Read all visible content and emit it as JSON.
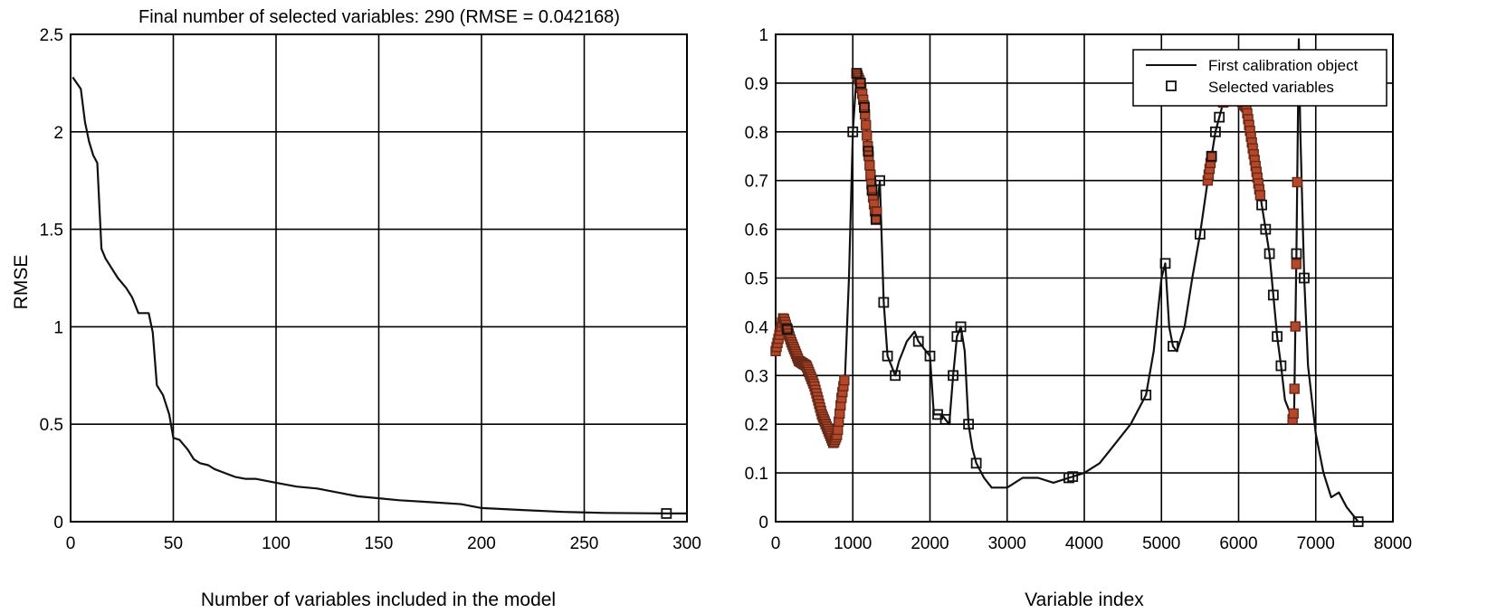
{
  "chart_data": [
    {
      "type": "line",
      "title": "Final number of selected variables: 290  (RMSE = 0.042168)",
      "xlabel": "Number of variables included in the model",
      "ylabel": "RMSE",
      "xlim": [
        0,
        300
      ],
      "ylim": [
        0,
        2.5
      ],
      "xticks": [
        "0",
        "50",
        "100",
        "150",
        "200",
        "250",
        "300"
      ],
      "yticks": [
        "0",
        "0.5",
        "1",
        "1.5",
        "2",
        "2.5"
      ],
      "grid": true,
      "series": [
        {
          "x": [
            1,
            5,
            7,
            9,
            11,
            13,
            15,
            17,
            20,
            23,
            27,
            30,
            33,
            36,
            38,
            40,
            42,
            45,
            48,
            50,
            53,
            57,
            60,
            63,
            67,
            70,
            75,
            80,
            85,
            90,
            100,
            110,
            120,
            130,
            140,
            150,
            160,
            175,
            190,
            200,
            220,
            240,
            260,
            280,
            290,
            300
          ],
          "y": [
            2.28,
            2.22,
            2.05,
            1.95,
            1.88,
            1.84,
            1.4,
            1.35,
            1.3,
            1.25,
            1.2,
            1.15,
            1.07,
            1.07,
            1.07,
            0.97,
            0.7,
            0.65,
            0.55,
            0.43,
            0.42,
            0.37,
            0.32,
            0.3,
            0.29,
            0.27,
            0.25,
            0.23,
            0.22,
            0.22,
            0.2,
            0.18,
            0.17,
            0.15,
            0.13,
            0.12,
            0.11,
            0.1,
            0.09,
            0.07,
            0.06,
            0.05,
            0.045,
            0.043,
            0.042,
            0.042
          ]
        }
      ],
      "highlight_point": {
        "x": 290,
        "y": 0.042
      }
    },
    {
      "type": "line",
      "xlabel": "Variable index",
      "xlim": [
        0,
        8000
      ],
      "ylim": [
        0,
        1
      ],
      "xticks": [
        "0",
        "1000",
        "2000",
        "3000",
        "4000",
        "5000",
        "6000",
        "7000",
        "8000"
      ],
      "yticks": [
        "0",
        "0.1",
        "0.2",
        "0.3",
        "0.4",
        "0.5",
        "0.6",
        "0.7",
        "0.8",
        "0.9",
        "1"
      ],
      "grid": true,
      "legend": {
        "position": "top-right",
        "entries": [
          "First calibration object",
          "Selected variables"
        ]
      },
      "series": [
        {
          "name": "First calibration object",
          "x": [
            0,
            100,
            200,
            300,
            400,
            500,
            600,
            700,
            750,
            800,
            850,
            900,
            950,
            1000,
            1050,
            1100,
            1150,
            1200,
            1250,
            1300,
            1350,
            1400,
            1450,
            1500,
            1550,
            1600,
            1650,
            1700,
            1800,
            1850,
            1900,
            1950,
            2000,
            2050,
            2100,
            2150,
            2200,
            2250,
            2300,
            2350,
            2400,
            2450,
            2500,
            2550,
            2600,
            2700,
            2800,
            3000,
            3200,
            3400,
            3600,
            3800,
            4000,
            4200,
            4400,
            4600,
            4800,
            4900,
            5000,
            5050,
            5100,
            5150,
            5200,
            5300,
            5400,
            5500,
            5600,
            5700,
            5800,
            5900,
            6000,
            6100,
            6200,
            6300,
            6400,
            6500,
            6550,
            6600,
            6700,
            6720,
            6750,
            6780,
            6800,
            6850,
            6900,
            7000,
            7100,
            7200,
            7300,
            7400,
            7500,
            7550
          ],
          "y": [
            0.35,
            0.42,
            0.37,
            0.33,
            0.32,
            0.28,
            0.22,
            0.18,
            0.16,
            0.18,
            0.25,
            0.3,
            0.5,
            0.8,
            0.92,
            0.9,
            0.85,
            0.76,
            0.68,
            0.62,
            0.7,
            0.45,
            0.34,
            0.32,
            0.3,
            0.33,
            0.35,
            0.37,
            0.39,
            0.37,
            0.36,
            0.35,
            0.34,
            0.22,
            0.22,
            0.22,
            0.21,
            0.2,
            0.3,
            0.38,
            0.4,
            0.35,
            0.2,
            0.15,
            0.12,
            0.09,
            0.07,
            0.07,
            0.09,
            0.09,
            0.08,
            0.09,
            0.1,
            0.12,
            0.16,
            0.2,
            0.26,
            0.35,
            0.5,
            0.53,
            0.4,
            0.36,
            0.35,
            0.4,
            0.5,
            0.59,
            0.7,
            0.8,
            0.86,
            0.88,
            0.87,
            0.85,
            0.75,
            0.65,
            0.55,
            0.38,
            0.32,
            0.25,
            0.21,
            0.23,
            0.55,
            0.99,
            0.8,
            0.5,
            0.32,
            0.18,
            0.1,
            0.05,
            0.06,
            0.03,
            0.01,
            0.0
          ]
        }
      ],
      "selected_x": [
        150,
        1000,
        1050,
        1100,
        1150,
        1200,
        1250,
        1300,
        1350,
        1400,
        1450,
        1550,
        1850,
        2000,
        2100,
        2200,
        2300,
        2350,
        2400,
        2500,
        2600,
        3800,
        3850,
        4800,
        5050,
        5150,
        5500,
        5650,
        5700,
        5750,
        5850,
        6300,
        6350,
        6400,
        6450,
        6500,
        6550,
        6750,
        6850,
        7550
      ]
    }
  ]
}
